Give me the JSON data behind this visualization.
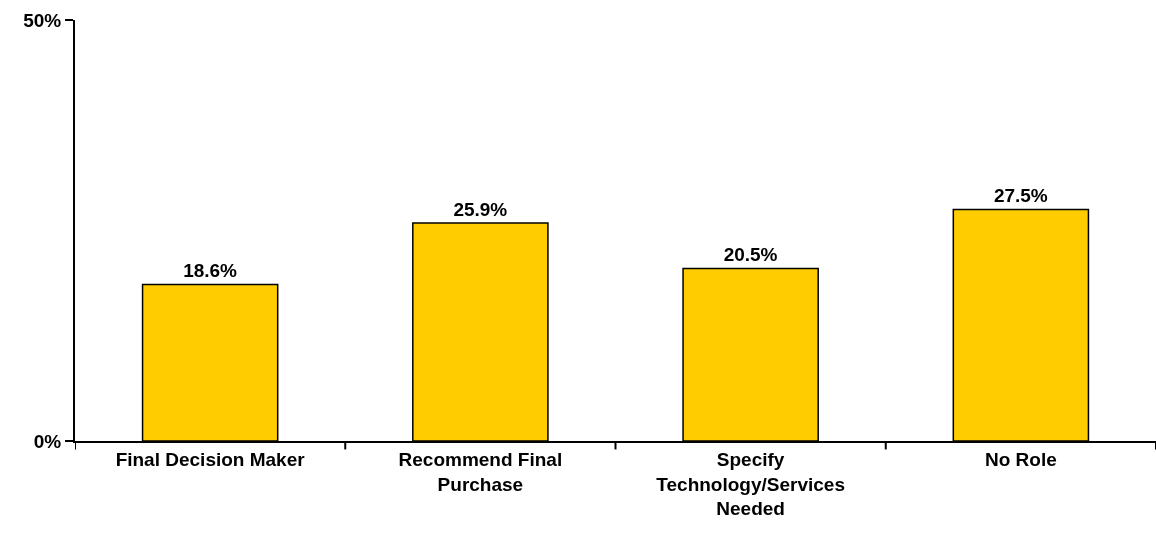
{
  "chart_data": {
    "type": "bar",
    "categories": [
      "Final Decision Maker",
      "Recommend Final Purchase",
      "Specify Technology/Services Needed",
      "No Role"
    ],
    "values": [
      18.6,
      25.9,
      20.5,
      27.5
    ],
    "value_labels": [
      "18.6%",
      "25.9%",
      "20.5%",
      "27.5%"
    ],
    "color": "#ffcc00",
    "ylim": [
      0,
      50
    ],
    "yticks": [
      {
        "value": 0,
        "label": "0%"
      },
      {
        "value": 50,
        "label": "50%"
      }
    ]
  }
}
